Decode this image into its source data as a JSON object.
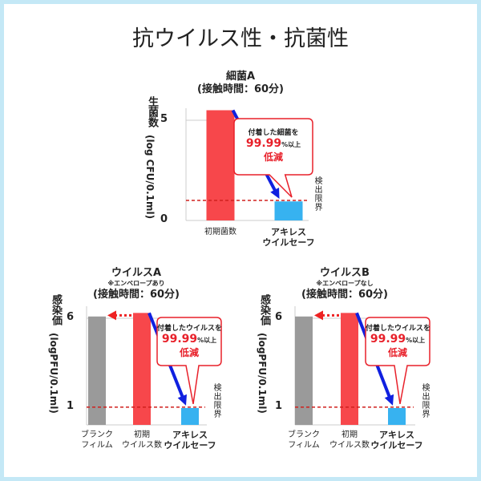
{
  "title": "抗ウイルス性・抗菌性",
  "colors": {
    "initial": "#f7474b",
    "safe": "#37b2f0",
    "blank": "#9a9a9a",
    "arrow": "#1020e0",
    "limit": "#d0201e"
  },
  "chart_data": [
    {
      "type": "bar",
      "title": "細菌A",
      "subtitle": "(接触時間：60分)",
      "note": "",
      "ylabel_main": "生菌数",
      "ylabel_unit": "(log CFU/0.1ml)",
      "yticks": [
        {
          "value": 5,
          "label": "5"
        },
        {
          "value": 0,
          "label": "0"
        }
      ],
      "ylim": [
        0,
        5.6
      ],
      "categories": [
        {
          "label": "初期菌数",
          "bold": false
        },
        {
          "label": "アキレス ウイルセーフ",
          "l1": "アキレス",
          "l2": "ウイルセーフ",
          "bold": true
        }
      ],
      "values": [
        5.5,
        0.95
      ],
      "detection_limit": 1.0,
      "detection_label": "検出限界",
      "callout": {
        "line1": "付着した細菌を",
        "percent": "99.99",
        "suffix": "%以上",
        "line3": "低減"
      }
    },
    {
      "type": "bar",
      "title": "ウイルスA",
      "subtitle": "(接触時間：60分)",
      "note": "※エンベロープあり",
      "ylabel_main": "感染価",
      "ylabel_unit": "(logPFU/0.1ml)",
      "yticks": [
        {
          "value": 6,
          "label": "6"
        },
        {
          "value": 1,
          "label": "1"
        }
      ],
      "ylim": [
        0,
        6.5
      ],
      "categories": [
        {
          "l1": "ブランク",
          "l2": "フィルム",
          "bold": false
        },
        {
          "l1": "初期",
          "l2": "ウイルス数",
          "bold": false
        },
        {
          "l1": "アキレス",
          "l2": "ウイルセーフ",
          "bold": true
        }
      ],
      "values": [
        6.1,
        6.3,
        0.95
      ],
      "detection_limit": 1.0,
      "detection_label": "検出限界",
      "callout": {
        "line1": "付着したウイルスを",
        "percent": "99.99",
        "suffix": "%以上",
        "line3": "低減"
      }
    },
    {
      "type": "bar",
      "title": "ウイルスB",
      "subtitle": "(接触時間：60分)",
      "note": "※エンベロープなし",
      "ylabel_main": "感染価",
      "ylabel_unit": "(logPFU/0.1ml)",
      "yticks": [
        {
          "value": 6,
          "label": "6"
        },
        {
          "value": 1,
          "label": "1"
        }
      ],
      "ylim": [
        0,
        6.5
      ],
      "categories": [
        {
          "l1": "ブランク",
          "l2": "フィルム",
          "bold": false
        },
        {
          "l1": "初期",
          "l2": "ウイルス数",
          "bold": false
        },
        {
          "l1": "アキレス",
          "l2": "ウイルセーフ",
          "bold": true
        }
      ],
      "values": [
        6.1,
        6.3,
        0.95
      ],
      "detection_limit": 1.0,
      "detection_label": "検出限界",
      "callout": {
        "line1": "付着したウイルスを",
        "percent": "99.99",
        "suffix": "%以上",
        "line3": "低減"
      }
    }
  ]
}
